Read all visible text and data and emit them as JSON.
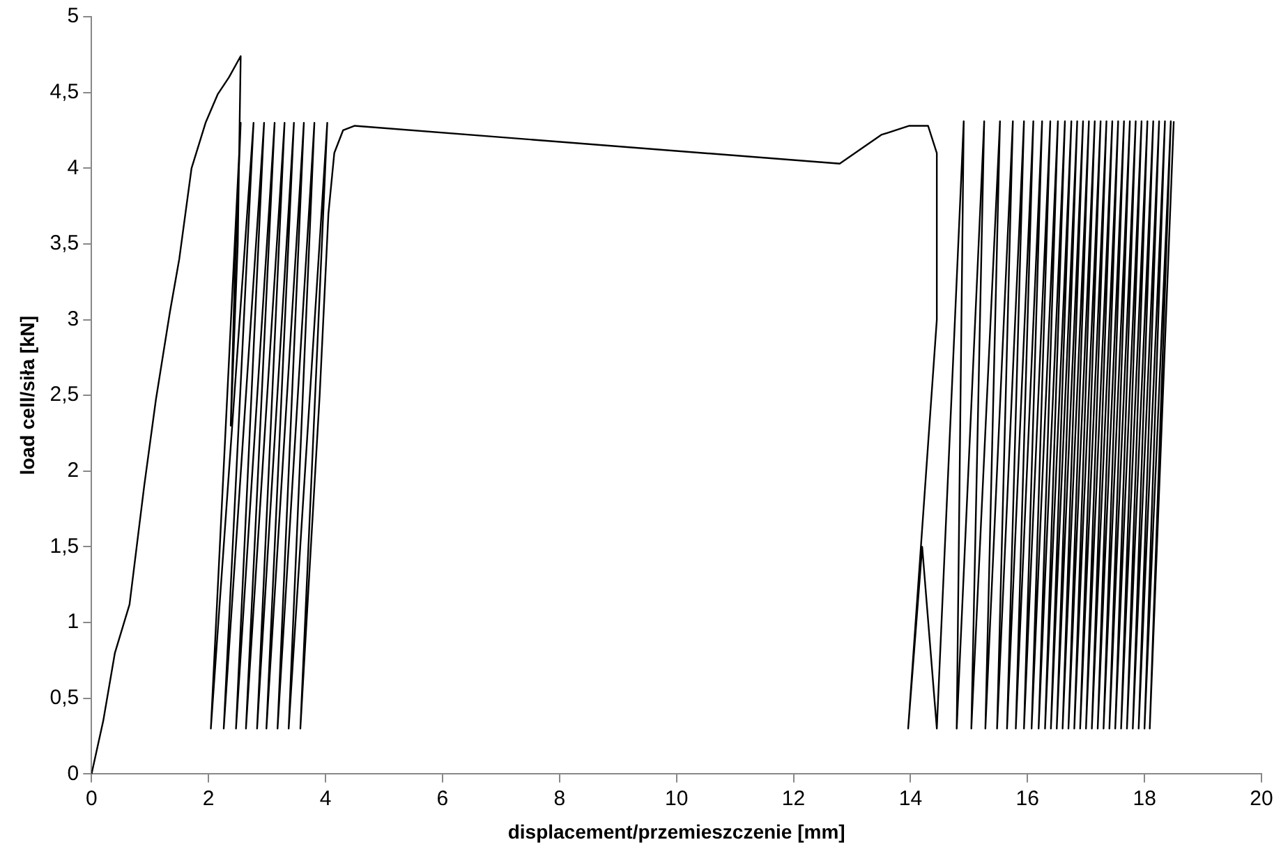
{
  "chart_data": {
    "type": "line",
    "xlabel": "displacement/przemieszczenie [mm]",
    "ylabel": "load cell/siła [kN]",
    "x": [
      0,
      0.2,
      0.4,
      0.65,
      0.9,
      1.1,
      1.34,
      1.5,
      1.71,
      1.95,
      2.16,
      2.35,
      2.55,
      2.5,
      2.38,
      2.45,
      2.55,
      2.04,
      2.77,
      2.26,
      2.95,
      2.47,
      3.13,
      2.64,
      3.3,
      2.83,
      3.46,
      2.99,
      3.63,
      3.18,
      3.81,
      3.37,
      4.03,
      3.57,
      3.9,
      4.05,
      4.15,
      4.3,
      4.5,
      12.79,
      13.5,
      13.98,
      14.3,
      14.45,
      14.45,
      13.96,
      14.2,
      14.45,
      14.91,
      14.79,
      15.26,
      15.04,
      15.53,
      15.28,
      15.75,
      15.48,
      15.94,
      15.65,
      16.1,
      15.8,
      16.25,
      15.94,
      16.39,
      16.07,
      16.52,
      16.19,
      16.64,
      16.3,
      16.75,
      16.4,
      16.85,
      16.5,
      16.95,
      16.6,
      17.05,
      16.7,
      17.15,
      16.8,
      17.25,
      16.9,
      17.35,
      17,
      17.45,
      17.1,
      17.55,
      17.2,
      17.65,
      17.3,
      17.75,
      17.4,
      17.85,
      17.5,
      17.95,
      17.6,
      18.05,
      17.7,
      18.15,
      17.8,
      18.25,
      17.9,
      18.35,
      18,
      18.45,
      18.09,
      18.5
    ],
    "series": [
      {
        "color": "#000000",
        "values": [
          0,
          0.35,
          0.8,
          1.12,
          1.9,
          2.47,
          3.05,
          3.4,
          4,
          4.3,
          4.49,
          4.6,
          4.74,
          3.5,
          2.3,
          3.3,
          4.3,
          0.3,
          4.3,
          0.3,
          4.3,
          0.3,
          4.3,
          0.3,
          4.3,
          0.3,
          4.3,
          0.3,
          4.3,
          0.3,
          4.3,
          0.3,
          4.3,
          0.3,
          2.5,
          3.7,
          4.1,
          4.25,
          4.28,
          4.03,
          4.22,
          4.28,
          4.28,
          4.1,
          3,
          0.3,
          1.5,
          0.3,
          4.31,
          0.3,
          4.31,
          0.3,
          4.31,
          0.3,
          4.31,
          0.3,
          4.31,
          0.3,
          4.31,
          0.3,
          4.31,
          0.3,
          4.31,
          0.3,
          4.31,
          0.3,
          4.31,
          0.3,
          4.31,
          0.3,
          4.31,
          0.3,
          4.31,
          0.3,
          4.31,
          0.3,
          4.31,
          0.3,
          4.31,
          0.3,
          4.31,
          0.3,
          4.31,
          0.3,
          4.31,
          0.3,
          4.31,
          0.3,
          4.31,
          0.3,
          4.31,
          0.3,
          4.31,
          0.3,
          4.31,
          0.3,
          4.31,
          0.3,
          4.31,
          0.3,
          4.31,
          0.3,
          4.31,
          0.3,
          4.31
        ]
      }
    ],
    "xlim": [
      0,
      20
    ],
    "xticks": [
      0,
      2,
      4,
      6,
      8,
      10,
      12,
      14,
      16,
      18,
      20
    ],
    "ylim": [
      0,
      5
    ],
    "yticks": [
      0,
      {
        "value": 0.5,
        "label": "0,5"
      },
      1,
      {
        "value": 1.5,
        "label": "1,5"
      },
      2,
      {
        "value": 2.5,
        "label": "2,5"
      },
      3,
      {
        "value": 3.5,
        "label": "3,5"
      },
      4,
      {
        "value": 4.5,
        "label": "4,5"
      },
      5
    ],
    "grid": false,
    "legend": false,
    "marker": "none",
    "line_style": "solid"
  }
}
